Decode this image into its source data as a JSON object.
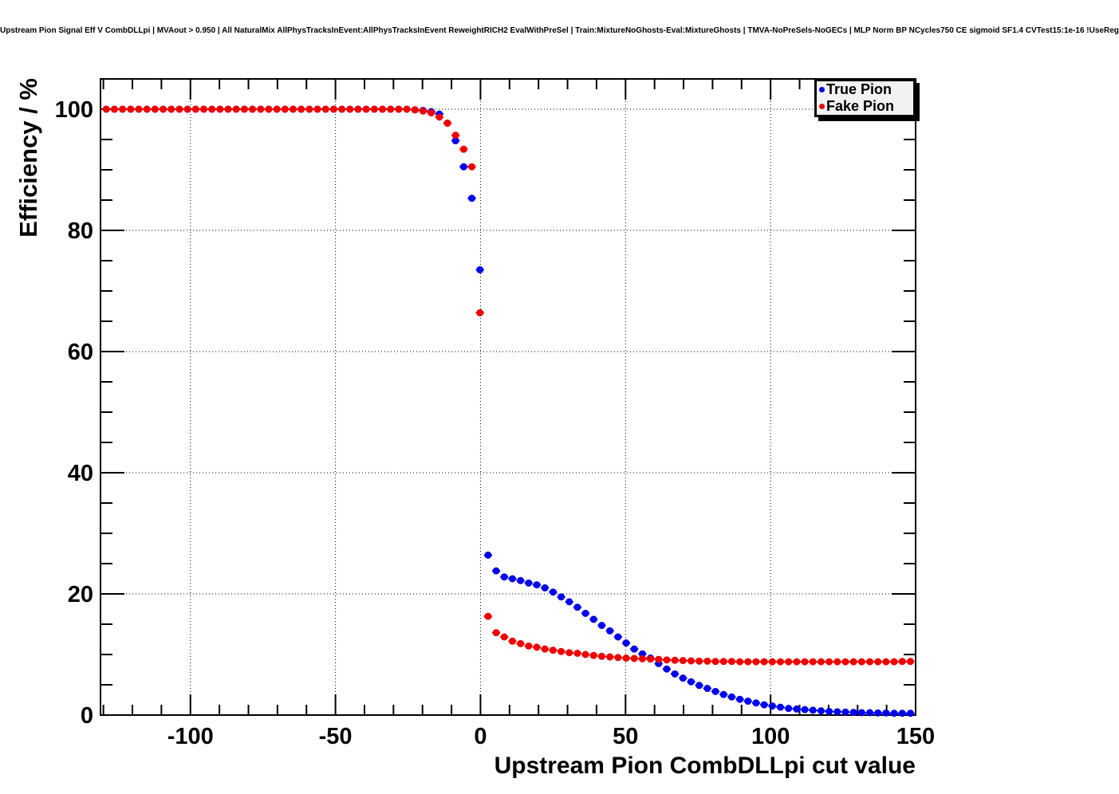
{
  "header": {
    "title": "Upstream Pion Signal Eff V CombDLLpi | MVAout > 0.950 | All NaturalMix AllPhysTracksInEvent:AllPhysTracksInEvent ReweightRICH2 EvalWithPreSel | Train:MixtureNoGhosts-Eval:MixtureGhosts | TMVA-NoPreSels-NoGECs | MLP Norm BP NCycles750 CE sigmoid SF1.4 CVTest15:1e-16 !UseReg"
  },
  "chart_data": {
    "type": "scatter",
    "title": "",
    "xlabel": "Upstream Pion CombDLLpi cut value",
    "ylabel": "Efficiency / %",
    "xlim": [
      -131,
      150
    ],
    "ylim": [
      0,
      105
    ],
    "xticks": [
      -100,
      -50,
      0,
      50,
      100,
      150
    ],
    "yticks": [
      0,
      20,
      40,
      60,
      80,
      100
    ],
    "x_minor_step": 10,
    "y_minor_step": 5,
    "grid": "dotted",
    "legend_position": "top-right",
    "marker": "filled-circle",
    "bin_half_width": 1.4,
    "x": [
      -129,
      -126.2,
      -123.4,
      -120.6,
      -117.8,
      -115,
      -112.2,
      -109.4,
      -106.6,
      -103.8,
      -101,
      -98.2,
      -95.4,
      -92.6,
      -89.8,
      -87,
      -84.2,
      -81.4,
      -78.6,
      -75.8,
      -73,
      -70.2,
      -67.4,
      -64.6,
      -61.8,
      -59,
      -56.2,
      -53.4,
      -50.6,
      -47.8,
      -45,
      -42.2,
      -39.4,
      -36.6,
      -33.8,
      -31,
      -28.2,
      -25.4,
      -22.6,
      -19.8,
      -17,
      -14.2,
      -11.4,
      -8.6,
      -5.8,
      -3,
      -0.2,
      2.6,
      5.4,
      8.2,
      11,
      13.8,
      16.6,
      19.4,
      22.2,
      25,
      27.8,
      30.6,
      33.4,
      36.2,
      39,
      41.8,
      44.6,
      47.4,
      50.2,
      53,
      55.8,
      58.6,
      61.4,
      64.2,
      67,
      69.8,
      72.6,
      75.4,
      78.2,
      81,
      83.8,
      86.6,
      89.4,
      92.2,
      95,
      97.8,
      100.6,
      103.4,
      106.2,
      109,
      111.8,
      114.6,
      117.4,
      120.2,
      123,
      125.8,
      128.6,
      131.4,
      134.2,
      137,
      139.8,
      142.6,
      145.4,
      148.2
    ],
    "series": [
      {
        "name": "True Pion",
        "color": "#0000f0",
        "values": [
          100,
          100,
          100,
          100,
          100,
          100,
          100,
          100,
          100,
          100,
          100,
          100,
          100,
          100,
          100,
          100,
          100,
          100,
          100,
          100,
          100,
          100,
          100,
          100,
          100,
          100,
          100,
          100,
          100,
          100,
          100,
          100,
          100,
          100,
          100,
          100,
          100,
          100,
          99.9,
          99.8,
          99.6,
          99.2,
          97.7,
          94.8,
          90.5,
          85.3,
          73.5,
          26.4,
          23.8,
          22.8,
          22.5,
          22.2,
          21.8,
          21.5,
          21.0,
          20.3,
          19.5,
          18.7,
          17.8,
          16.8,
          15.8,
          14.8,
          13.9,
          12.9,
          11.9,
          10.9,
          10.1,
          9.4,
          8.5,
          7.6,
          6.8,
          6.1,
          5.5,
          4.9,
          4.4,
          3.9,
          3.4,
          3.0,
          2.6,
          2.3,
          2.0,
          1.7,
          1.5,
          1.3,
          1.1,
          1.0,
          0.9,
          0.8,
          0.7,
          0.6,
          0.55,
          0.5,
          0.45,
          0.4,
          0.4,
          0.35,
          0.35,
          0.3,
          0.3,
          0.3
        ]
      },
      {
        "name": "Fake Pion",
        "color": "#f00000",
        "values": [
          100,
          100,
          100,
          100,
          100,
          100,
          100,
          100,
          100,
          100,
          100,
          100,
          100,
          100,
          100,
          100,
          100,
          100,
          100,
          100,
          100,
          100,
          100,
          100,
          100,
          100,
          100,
          100,
          100,
          100,
          100,
          100,
          100,
          100,
          100,
          100,
          100,
          100,
          99.9,
          99.7,
          99.4,
          98.7,
          97.7,
          95.7,
          93.4,
          90.5,
          66.4,
          16.3,
          13.6,
          12.9,
          12.2,
          11.8,
          11.4,
          11.2,
          10.9,
          10.7,
          10.5,
          10.3,
          10.2,
          10.0,
          9.85,
          9.7,
          9.6,
          9.5,
          9.4,
          9.35,
          9.3,
          9.25,
          9.2,
          9.1,
          9.05,
          9.0,
          8.95,
          8.9,
          8.9,
          8.85,
          8.85,
          8.85,
          8.8,
          8.8,
          8.8,
          8.8,
          8.8,
          8.8,
          8.8,
          8.8,
          8.8,
          8.8,
          8.8,
          8.8,
          8.8,
          8.8,
          8.8,
          8.8,
          8.8,
          8.8,
          8.8,
          8.8,
          8.85,
          8.85
        ]
      }
    ]
  }
}
